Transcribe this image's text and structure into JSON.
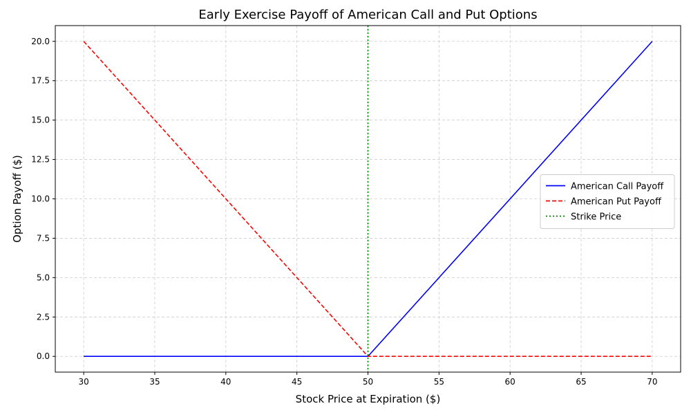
{
  "chart_data": {
    "type": "line",
    "title": "Early Exercise Payoff of American Call and Put Options",
    "xlabel": "Stock Price at Expiration ($)",
    "ylabel": "Option Payoff ($)",
    "xlim": [
      28,
      72
    ],
    "ylim": [
      -1,
      21
    ],
    "xticks": [
      "30",
      "35",
      "40",
      "45",
      "50",
      "55",
      "60",
      "65",
      "70"
    ],
    "yticks": [
      "0.0",
      "2.5",
      "5.0",
      "7.5",
      "10.0",
      "12.5",
      "15.0",
      "17.5",
      "20.0"
    ],
    "grid": true,
    "legend_position": "center-right",
    "series": [
      {
        "name": "American Call Payoff",
        "color": "#0000ff",
        "style": "solid",
        "x": [
          30,
          50,
          70
        ],
        "y": [
          0,
          0,
          20
        ]
      },
      {
        "name": "American Put Payoff",
        "color": "#ff0000",
        "style": "dashed",
        "x": [
          30,
          50,
          70
        ],
        "y": [
          20,
          0,
          0
        ]
      }
    ],
    "vlines": [
      {
        "name": "Strike Price",
        "color": "#008000",
        "style": "dotted",
        "x": 50
      }
    ]
  }
}
